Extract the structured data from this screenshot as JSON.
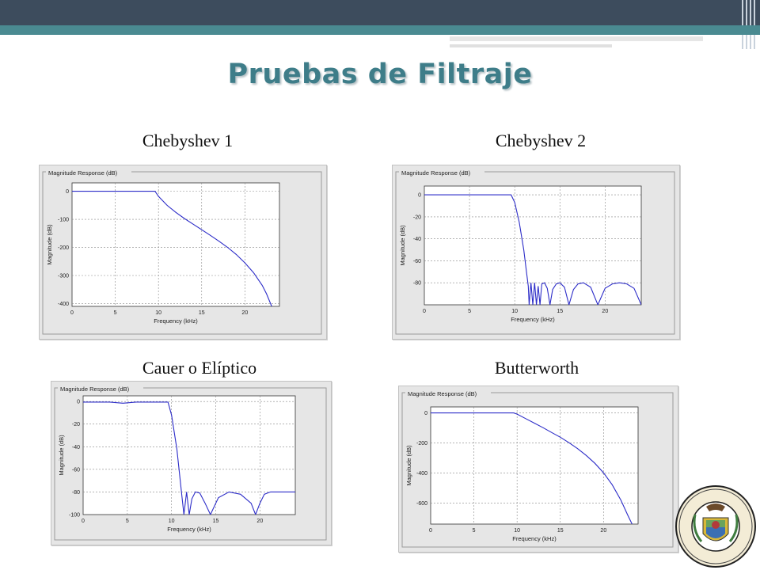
{
  "slide": {
    "title": "Pruebas de Filtraje"
  },
  "colors": {
    "title": "#3e7d89",
    "curve": "#2c2cc8",
    "panel_bg": "#e6e6e6"
  },
  "logo": {
    "ring_top_text": "ESCUELA POLITECNICA DEL EJERCITO",
    "ring_bottom_text": "ECUADOR"
  },
  "chart_data": [
    {
      "type": "line",
      "caption": "Chebyshev 1",
      "title": "Magnitude Response (dB)",
      "xlabel": "Frequency (kHz)",
      "ylabel": "Magnitude (dB)",
      "xlim": [
        0,
        24
      ],
      "ylim": [
        -410,
        30
      ],
      "xticks": [
        0,
        5,
        10,
        15,
        20
      ],
      "yticks": [
        0,
        -100,
        -200,
        -300,
        -400
      ],
      "grid": true,
      "x": [
        0,
        9.6,
        10,
        11,
        12,
        13,
        14,
        15,
        16,
        17,
        18,
        19,
        20,
        21,
        22,
        22.5,
        23.1
      ],
      "y": [
        0,
        0,
        -18,
        -50,
        -75,
        -97,
        -117,
        -137,
        -157,
        -178,
        -200,
        -225,
        -255,
        -290,
        -335,
        -365,
        -410
      ]
    },
    {
      "type": "line",
      "caption": "Chebyshev 2",
      "title": "Magnitude Response (dB)",
      "xlabel": "Frequency (kHz)",
      "ylabel": "Magnitude (dB)",
      "xlim": [
        0,
        24
      ],
      "ylim": [
        -100,
        8
      ],
      "xticks": [
        0,
        5,
        10,
        15,
        20
      ],
      "yticks": [
        0,
        -20,
        -40,
        -60,
        -80
      ],
      "grid": true,
      "x": [
        0,
        9.6,
        10,
        10.5,
        11,
        11.3,
        11.5,
        11.6,
        11.8,
        12.0,
        12.2,
        12.4,
        12.6,
        12.8,
        13.0,
        13.3,
        13.6,
        13.9,
        14.2,
        14.6,
        15.0,
        15.5,
        16.0,
        16.5,
        17.0,
        17.6,
        18.4,
        19.2,
        20.0,
        20.8,
        21.6,
        22.4,
        23.2,
        24.0
      ],
      "y": [
        0,
        0,
        -7,
        -25,
        -50,
        -70,
        -83,
        -100,
        -80,
        -100,
        -80,
        -100,
        -83,
        -100,
        -81,
        -80,
        -85,
        -100,
        -86,
        -81,
        -80,
        -84,
        -100,
        -86,
        -81,
        -80,
        -84,
        -100,
        -85,
        -81,
        -80,
        -81,
        -85,
        -100
      ]
    },
    {
      "type": "line",
      "caption": "Cauer o Elíptico",
      "title": "Magnitude Response (dB)",
      "xlabel": "Frequency (kHz)",
      "ylabel": "Magnitude (dB)",
      "xlim": [
        0,
        24
      ],
      "ylim": [
        -100,
        5
      ],
      "xticks": [
        0,
        5,
        10,
        15,
        20
      ],
      "yticks": [
        0,
        -20,
        -40,
        -60,
        -80,
        -100
      ],
      "grid": true,
      "x": [
        0,
        3,
        4.5,
        6,
        9.6,
        10,
        10.6,
        11.1,
        11.4,
        11.7,
        12.0,
        12.3,
        12.7,
        13.2,
        13.8,
        14.4,
        15.3,
        16.5,
        17.8,
        19.0,
        19.5,
        20.0,
        20.5,
        21.2,
        22.2,
        23.0,
        24.0
      ],
      "y": [
        -0.5,
        -0.5,
        -1.5,
        -0.5,
        -0.5,
        -12,
        -42,
        -78,
        -100,
        -80,
        -100,
        -86,
        -80,
        -81,
        -90,
        -100,
        -85,
        -80,
        -82,
        -90,
        -100,
        -90,
        -82,
        -80,
        -80,
        -80,
        -80
      ]
    },
    {
      "type": "line",
      "caption": "Butterworth",
      "title": "Magnitude Response (dB)",
      "xlabel": "Frequency (kHz)",
      "ylabel": "Magnitude (dB)",
      "xlim": [
        0,
        24
      ],
      "ylim": [
        -740,
        40
      ],
      "xticks": [
        0,
        5,
        10,
        15,
        20
      ],
      "yticks": [
        0,
        -200,
        -400,
        -600
      ],
      "grid": true,
      "x": [
        0,
        9.6,
        10,
        11,
        12,
        13,
        14,
        15,
        16,
        17,
        18,
        19,
        20,
        21,
        22,
        22.8,
        23.3
      ],
      "y": [
        0,
        0,
        -8,
        -38,
        -68,
        -98,
        -130,
        -162,
        -198,
        -238,
        -283,
        -335,
        -398,
        -478,
        -580,
        -680,
        -740
      ]
    }
  ]
}
